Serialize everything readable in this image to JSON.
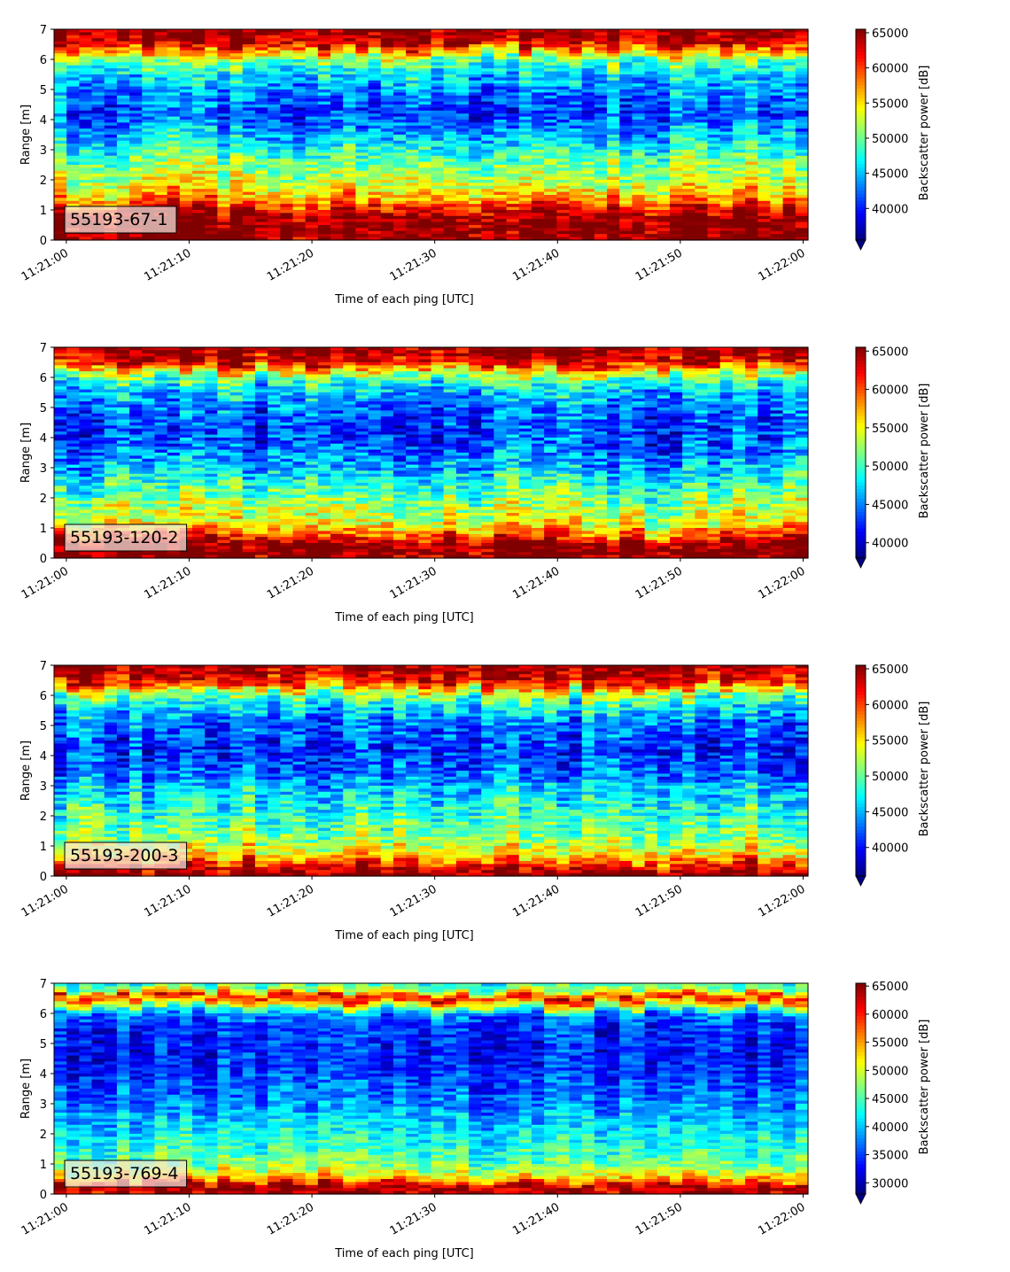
{
  "colormap": "jet",
  "colorbar_label": "Backscatter power [dB]",
  "chart_data": [
    {
      "type": "heatmap",
      "title": "",
      "annotation": "55193-67-1",
      "xlabel": "Time of each ping [UTC]",
      "ylabel": "Range [m]",
      "xticklabels": [
        "11:21:00",
        "11:21:10",
        "11:21:20",
        "11:21:30",
        "11:21:40",
        "11:21:50",
        "11:22:00"
      ],
      "yticks": [
        0,
        1,
        2,
        3,
        4,
        5,
        6,
        7
      ],
      "xlim": [
        "11:20:59",
        "11:22:00"
      ],
      "ylim": [
        0,
        7
      ],
      "colorbar": {
        "label": "Backscatter power [dB]",
        "min": 35500,
        "max": 65500,
        "ticks": [
          40000,
          45000,
          50000,
          55000,
          60000,
          65000
        ],
        "extend": "min"
      },
      "profile": [
        {
          "range_m": 0.2,
          "power": 65500
        },
        {
          "range_m": 0.6,
          "power": 65500
        },
        {
          "range_m": 1.0,
          "power": 63000
        },
        {
          "range_m": 1.3,
          "power": 58000
        },
        {
          "range_m": 1.8,
          "power": 53500
        },
        {
          "range_m": 2.5,
          "power": 51000
        },
        {
          "range_m": 3.0,
          "power": 48000
        },
        {
          "range_m": 3.7,
          "power": 43500
        },
        {
          "range_m": 4.2,
          "power": 41500
        },
        {
          "range_m": 4.8,
          "power": 43000
        },
        {
          "range_m": 5.4,
          "power": 45500
        },
        {
          "range_m": 6.0,
          "power": 50500
        },
        {
          "range_m": 6.3,
          "power": 58000
        },
        {
          "range_m": 6.6,
          "power": 64000
        },
        {
          "range_m": 7.0,
          "power": 65500
        }
      ]
    },
    {
      "type": "heatmap",
      "title": "",
      "annotation": "55193-120-2",
      "xlabel": "Time of each ping [UTC]",
      "ylabel": "Range [m]",
      "xticklabels": [
        "11:21:00",
        "11:21:10",
        "11:21:20",
        "11:21:30",
        "11:21:40",
        "11:21:50",
        "11:22:00"
      ],
      "yticks": [
        0,
        1,
        2,
        3,
        4,
        5,
        6,
        7
      ],
      "xlim": [
        "11:20:59",
        "11:22:00"
      ],
      "ylim": [
        0,
        7
      ],
      "colorbar": {
        "label": "Backscatter power [dB]",
        "min": 38000,
        "max": 65500,
        "ticks": [
          40000,
          45000,
          50000,
          55000,
          60000,
          65000
        ],
        "extend": "min"
      },
      "profile": [
        {
          "range_m": 0.2,
          "power": 65500
        },
        {
          "range_m": 0.5,
          "power": 64500
        },
        {
          "range_m": 0.8,
          "power": 59000
        },
        {
          "range_m": 1.2,
          "power": 54500
        },
        {
          "range_m": 1.8,
          "power": 52500
        },
        {
          "range_m": 2.5,
          "power": 49000
        },
        {
          "range_m": 3.2,
          "power": 45500
        },
        {
          "range_m": 3.8,
          "power": 43500
        },
        {
          "range_m": 4.5,
          "power": 43000
        },
        {
          "range_m": 5.2,
          "power": 45000
        },
        {
          "range_m": 5.8,
          "power": 48500
        },
        {
          "range_m": 6.2,
          "power": 55000
        },
        {
          "range_m": 6.5,
          "power": 62500
        },
        {
          "range_m": 7.0,
          "power": 65500
        }
      ]
    },
    {
      "type": "heatmap",
      "title": "",
      "annotation": "55193-200-3",
      "xlabel": "Time of each ping [UTC]",
      "ylabel": "Range [m]",
      "xticklabels": [
        "11:21:00",
        "11:21:10",
        "11:21:20",
        "11:21:30",
        "11:21:40",
        "11:21:50",
        "11:22:00"
      ],
      "yticks": [
        0,
        1,
        2,
        3,
        4,
        5,
        6,
        7
      ],
      "xlim": [
        "11:20:59",
        "11:22:00"
      ],
      "ylim": [
        0,
        7
      ],
      "colorbar": {
        "label": "Backscatter power [dB]",
        "min": 36000,
        "max": 65500,
        "ticks": [
          40000,
          45000,
          50000,
          55000,
          60000,
          65000
        ],
        "extend": "min"
      },
      "profile": [
        {
          "range_m": 0.1,
          "power": 65500
        },
        {
          "range_m": 0.35,
          "power": 62000
        },
        {
          "range_m": 0.7,
          "power": 55500
        },
        {
          "range_m": 1.2,
          "power": 51500
        },
        {
          "range_m": 2.0,
          "power": 49000
        },
        {
          "range_m": 2.8,
          "power": 46000
        },
        {
          "range_m": 3.5,
          "power": 42500
        },
        {
          "range_m": 4.2,
          "power": 41000
        },
        {
          "range_m": 5.0,
          "power": 43000
        },
        {
          "range_m": 5.6,
          "power": 46500
        },
        {
          "range_m": 6.1,
          "power": 52500
        },
        {
          "range_m": 6.4,
          "power": 61000
        },
        {
          "range_m": 7.0,
          "power": 65500
        }
      ]
    },
    {
      "type": "heatmap",
      "title": "",
      "annotation": "55193-769-4",
      "xlabel": "Time of each ping [UTC]",
      "ylabel": "Range [m]",
      "xticklabels": [
        "11:21:00",
        "11:21:10",
        "11:21:20",
        "11:21:30",
        "11:21:40",
        "11:21:50",
        "11:22:00"
      ],
      "yticks": [
        0,
        1,
        2,
        3,
        4,
        5,
        6,
        7
      ],
      "xlim": [
        "11:20:59",
        "11:22:00"
      ],
      "ylim": [
        0,
        7
      ],
      "colorbar": {
        "label": "Backscatter power [dB]",
        "min": 28000,
        "max": 65500,
        "ticks": [
          30000,
          35000,
          40000,
          45000,
          50000,
          55000,
          60000,
          65000
        ],
        "extend": "min"
      },
      "profile": [
        {
          "range_m": 0.1,
          "power": 63000
        },
        {
          "range_m": 0.25,
          "power": 65500
        },
        {
          "range_m": 0.45,
          "power": 55000
        },
        {
          "range_m": 0.9,
          "power": 46500
        },
        {
          "range_m": 1.6,
          "power": 43500
        },
        {
          "range_m": 2.4,
          "power": 40000
        },
        {
          "range_m": 3.2,
          "power": 37000
        },
        {
          "range_m": 4.0,
          "power": 34500
        },
        {
          "range_m": 4.8,
          "power": 33500
        },
        {
          "range_m": 5.6,
          "power": 34500
        },
        {
          "range_m": 6.0,
          "power": 38000
        },
        {
          "range_m": 6.3,
          "power": 52000
        },
        {
          "range_m": 6.55,
          "power": 61000
        },
        {
          "range_m": 6.8,
          "power": 47000
        },
        {
          "range_m": 7.0,
          "power": 44000
        }
      ]
    }
  ]
}
